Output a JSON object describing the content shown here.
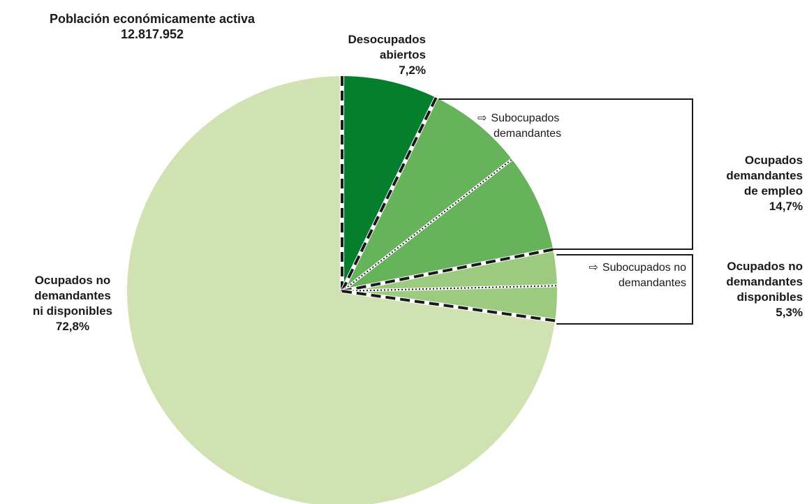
{
  "chart_data": {
    "type": "pie",
    "title": "Población económicamente activa",
    "subtitle": "12.817.952",
    "unit": "%",
    "slices": [
      {
        "name": "Desocupados abiertos",
        "value": 7.2,
        "color": "#057f2e"
      },
      {
        "name": "Subocupados demandantes",
        "value": 7.3,
        "color": "#66b35b"
      },
      {
        "name": "Ocupados demandantes de empleo (resto)",
        "value": 7.4,
        "color": "#66b35b"
      },
      {
        "name": "Subocupados no demandantes",
        "value": 2.7,
        "color": "#9ccb7f"
      },
      {
        "name": "Ocupados no demandantes disponibles (resto)",
        "value": 2.6,
        "color": "#9ccb7f"
      },
      {
        "name": "Ocupados no demandantes ni disponibles",
        "value": 72.8,
        "color": "#d0e2b2"
      }
    ],
    "groups": [
      {
        "lines": [
          "Ocupados",
          "demandantes",
          "de empleo",
          "14,7%"
        ],
        "total": 14.7
      },
      {
        "lines": [
          "Ocupados no",
          "demandantes",
          "disponibles",
          "5,3%"
        ],
        "total": 5.3
      }
    ],
    "labels": {
      "desocupados": [
        "Desocupados",
        "abiertos",
        "7,2%"
      ],
      "ni_disponibles": [
        "Ocupados no",
        "demandantes",
        "ni disponibles",
        "72,8%"
      ]
    },
    "sub_labels": {
      "subocupados_demandantes": [
        "Subocupados",
        "demandantes"
      ],
      "subocupados_no_demandantes": [
        "Subocupados no",
        "demandantes"
      ]
    },
    "arrow_glyph": "⇨"
  }
}
